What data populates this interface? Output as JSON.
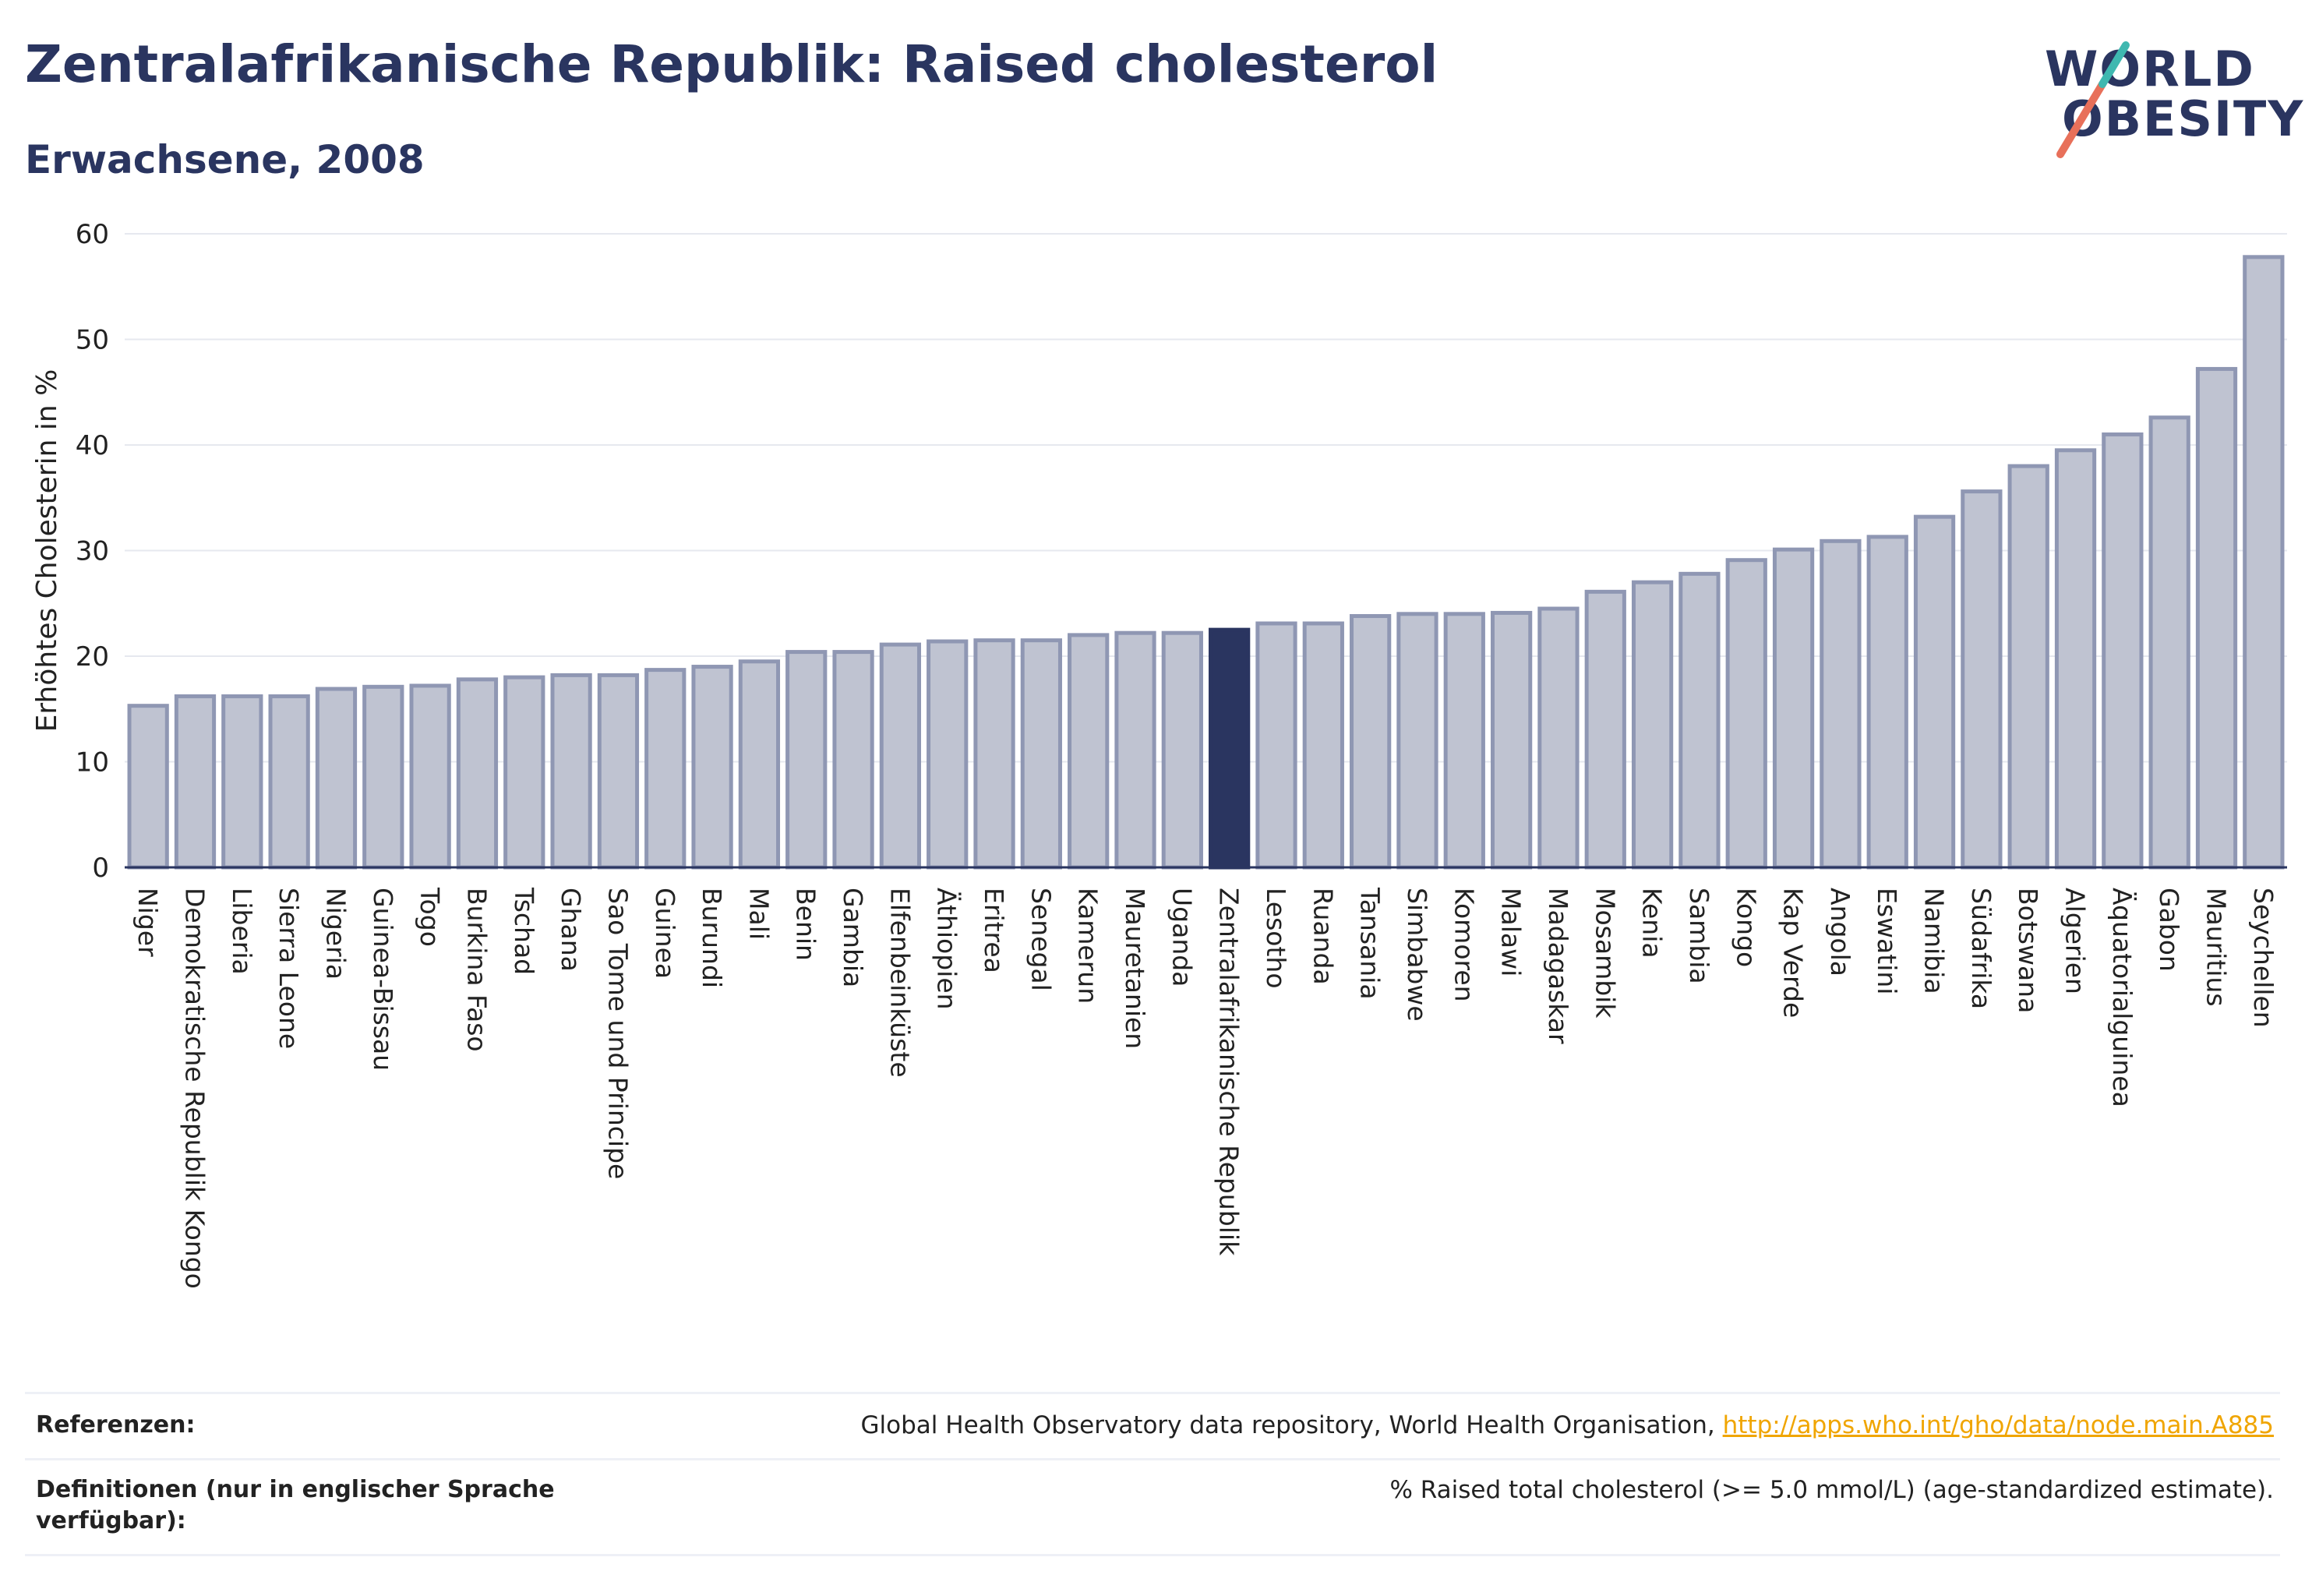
{
  "header": {
    "title": "Zentralafrikanische Republik: Raised cholesterol",
    "subtitle": "Erwachsene, 2008"
  },
  "logo": {
    "line1": "WORLD",
    "line2": "OBESITY",
    "colors": {
      "text": "#2a3560",
      "slash_top": "#3fb8b0",
      "slash_bottom": "#e8705a"
    }
  },
  "chart_data": {
    "type": "bar",
    "title": "Zentralafrikanische Republik: Raised cholesterol",
    "ylabel": "Erhöhtes Cholesterin in %",
    "xlabel": "",
    "ylim": [
      0,
      60
    ],
    "yticks": [
      0,
      10,
      20,
      30,
      40,
      50,
      60
    ],
    "grid": true,
    "highlight": "Zentralafrikanische Republik",
    "colors": {
      "bar": "#bfc3d1",
      "bar_stroke": "#8f97b3",
      "highlight": "#2a3560",
      "grid": "#e6e8ef"
    },
    "categories": [
      "Niger",
      "Demokratische Republik Kongo",
      "Liberia",
      "Sierra Leone",
      "Nigeria",
      "Guinea-Bissau",
      "Togo",
      "Burkina Faso",
      "Tschad",
      "Ghana",
      "Sao Tome und Principe",
      "Guinea",
      "Burundi",
      "Mali",
      "Benin",
      "Gambia",
      "Elfenbeinküste",
      "Äthiopien",
      "Eritrea",
      "Senegal",
      "Kamerun",
      "Mauretanien",
      "Uganda",
      "Zentralafrikanische Republik",
      "Lesotho",
      "Ruanda",
      "Tansania",
      "Simbabwe",
      "Komoren",
      "Malawi",
      "Madagaskar",
      "Mosambik",
      "Kenia",
      "Sambia",
      "Kongo",
      "Kap Verde",
      "Angola",
      "Eswatini",
      "Namibia",
      "Südafrika",
      "Botswana",
      "Algerien",
      "Äquatorialguinea",
      "Gabon",
      "Mauritius",
      "Seychellen"
    ],
    "values": [
      15.3,
      16.2,
      16.2,
      16.2,
      16.9,
      17.1,
      17.2,
      17.8,
      18.0,
      18.2,
      18.2,
      18.7,
      19.0,
      19.5,
      20.4,
      20.4,
      21.1,
      21.4,
      21.5,
      21.5,
      22.0,
      22.2,
      22.2,
      22.5,
      23.1,
      23.1,
      23.8,
      24.0,
      24.0,
      24.1,
      24.5,
      26.1,
      27.0,
      27.8,
      29.1,
      30.1,
      30.9,
      31.3,
      33.2,
      35.6,
      38.0,
      39.5,
      41.0,
      42.6,
      47.2,
      57.8
    ]
  },
  "references": {
    "label": "Referenzen:",
    "text": "Global Health Observatory data repository, World Health Organisation, ",
    "link": "http://apps.who.int/gho/data/node.main.A885"
  },
  "definitions": {
    "label": "Definitionen (nur in englischer Sprache verfügbar):",
    "text": "% Raised total cholesterol (>= 5.0 mmol/L) (age-standardized estimate)."
  }
}
